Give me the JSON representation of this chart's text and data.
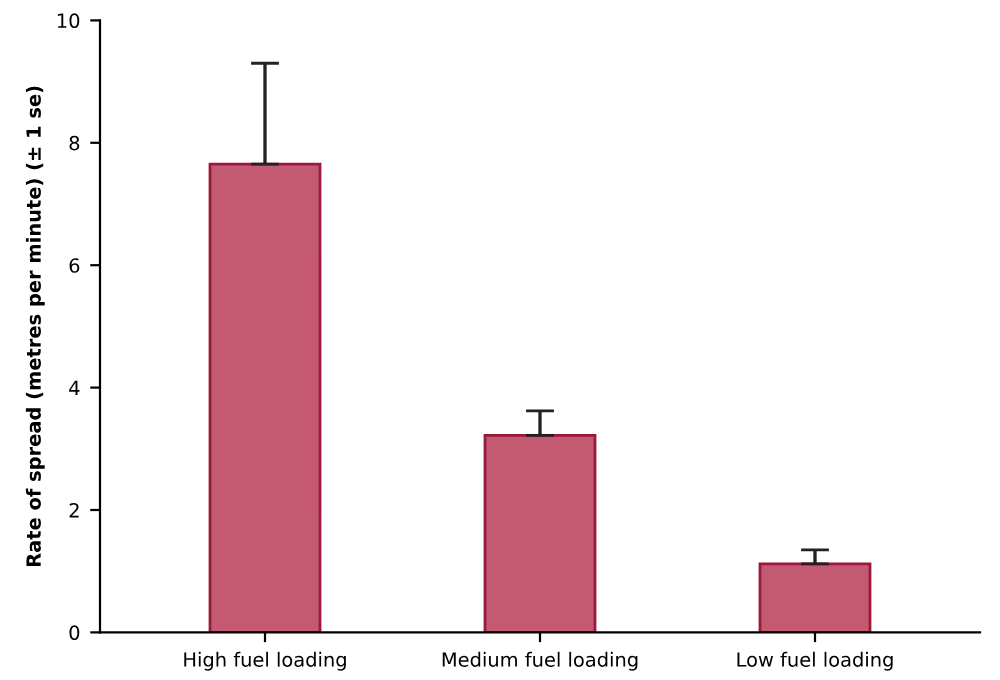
{
  "chart_data": {
    "type": "bar",
    "ylabel": "Rate of spread (metres per minute) (± 1 se)",
    "categories": [
      "High fuel loading",
      "Medium fuel loading",
      "Low fuel loading"
    ],
    "values": [
      7.65,
      3.22,
      1.12
    ],
    "errors": [
      [
        7.65,
        9.3
      ],
      [
        3.22,
        3.62
      ],
      [
        1.12,
        1.35
      ]
    ],
    "color": "#c45a72",
    "ylim": [
      0,
      10
    ],
    "yticks": [
      0,
      2,
      4,
      6,
      8,
      10
    ],
    "grid": false,
    "legend": false
  }
}
